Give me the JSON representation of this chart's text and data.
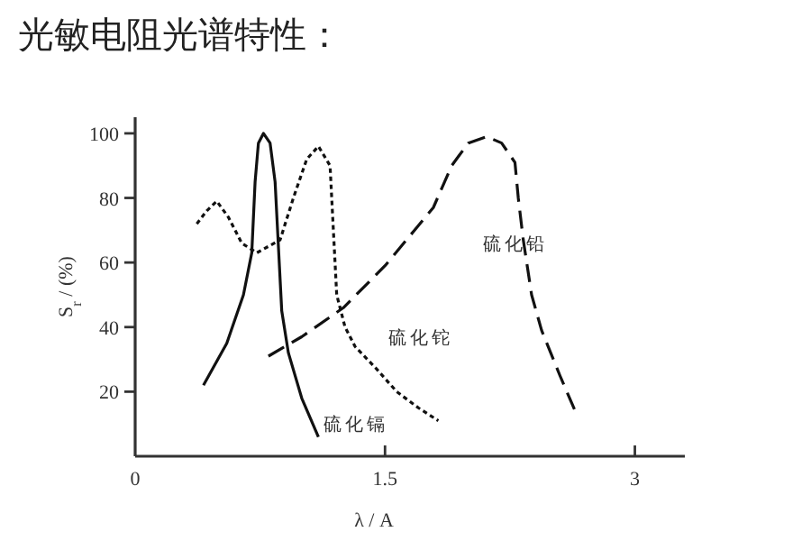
{
  "chart_data": {
    "type": "line",
    "title": "光敏电阻光谱特性：",
    "xlabel": "λ / A",
    "ylabel": "S$_{r}$ / (%)",
    "xlim": [
      0,
      3.3
    ],
    "ylim": [
      0,
      105
    ],
    "xticks": [
      0,
      1.5,
      3
    ],
    "yticks": [
      20,
      40,
      60,
      80,
      100
    ],
    "grid": false,
    "legend": false,
    "series": [
      {
        "name": "硫化镉",
        "color": "#111111",
        "line_style": "solid",
        "x": [
          0.41,
          0.55,
          0.65,
          0.7,
          0.72,
          0.74,
          0.77,
          0.81,
          0.84,
          0.86,
          0.88,
          0.92,
          1.0,
          1.1
        ],
        "values": [
          22,
          35,
          50,
          63,
          85,
          97,
          100,
          97,
          85,
          65,
          45,
          32,
          18,
          6
        ]
      },
      {
        "name": "硫化铊",
        "color": "#111111",
        "line_style": "dotted",
        "x": [
          0.37,
          0.43,
          0.49,
          0.56,
          0.64,
          0.73,
          0.87,
          0.95,
          1.03,
          1.1,
          1.17,
          1.19,
          1.21,
          1.26,
          1.32,
          1.45,
          1.57,
          1.7,
          1.82
        ],
        "values": [
          72,
          76,
          79,
          74,
          66,
          63,
          67,
          80,
          92,
          96,
          90,
          70,
          50,
          40,
          34,
          27,
          20,
          15,
          11
        ]
      },
      {
        "name": "硫化铅",
        "color": "#111111",
        "line_style": "dashed",
        "x": [
          0.8,
          1.0,
          1.25,
          1.5,
          1.79,
          1.9,
          2.0,
          2.11,
          2.2,
          2.28,
          2.3,
          2.33,
          2.38,
          2.44,
          2.55,
          2.65
        ],
        "values": [
          31,
          37,
          46,
          59,
          77,
          90,
          97,
          99,
          97,
          91,
          80,
          67,
          50,
          39,
          25,
          13
        ]
      }
    ]
  }
}
